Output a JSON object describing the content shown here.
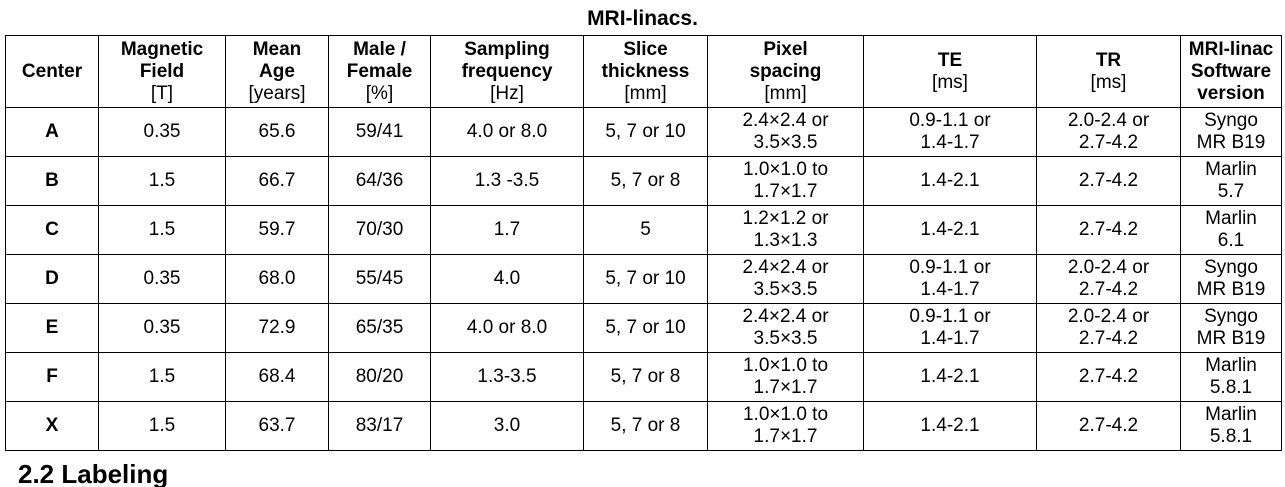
{
  "caption": "MRI-linacs.",
  "headers": [
    {
      "lines": [
        "Center"
      ],
      "unit": ""
    },
    {
      "lines": [
        "Magnetic",
        "Field"
      ],
      "unit": "[T]"
    },
    {
      "lines": [
        "Mean",
        "Age"
      ],
      "unit": "[years]"
    },
    {
      "lines": [
        "Male /",
        "Female"
      ],
      "unit": "[%]"
    },
    {
      "lines": [
        "Sampling",
        "frequency"
      ],
      "unit": "[Hz]"
    },
    {
      "lines": [
        "Slice",
        "thickness"
      ],
      "unit": "[mm]"
    },
    {
      "lines": [
        "Pixel",
        "spacing"
      ],
      "unit": "[mm]"
    },
    {
      "lines": [
        "TE"
      ],
      "unit": "[ms]"
    },
    {
      "lines": [
        "TR"
      ],
      "unit": "[ms]"
    },
    {
      "lines": [
        "MRI-linac",
        "Software",
        "version"
      ],
      "unit": ""
    }
  ],
  "rows": [
    {
      "center": "A",
      "field": "0.35",
      "age": "65.6",
      "mf": "59/41",
      "sampling": "4.0 or 8.0",
      "slice": "5, 7 or 10",
      "pixel": [
        "2.4×2.4 or",
        "3.5×3.5"
      ],
      "te": [
        "0.9-1.1 or",
        "1.4-1.7"
      ],
      "tr": [
        "2.0-2.4 or",
        "2.7-4.2"
      ],
      "software": [
        "Syngo",
        "MR B19"
      ]
    },
    {
      "center": "B",
      "field": "1.5",
      "age": "66.7",
      "mf": "64/36",
      "sampling": "1.3 -3.5",
      "slice": "5, 7 or 8",
      "pixel": [
        "1.0×1.0 to",
        "1.7×1.7"
      ],
      "te": [
        "1.4-2.1"
      ],
      "tr": [
        "2.7-4.2"
      ],
      "software": [
        "Marlin",
        "5.7"
      ]
    },
    {
      "center": "C",
      "field": "1.5",
      "age": "59.7",
      "mf": "70/30",
      "sampling": "1.7",
      "slice": "5",
      "pixel": [
        "1.2×1.2 or",
        "1.3×1.3"
      ],
      "te": [
        "1.4-2.1"
      ],
      "tr": [
        "2.7-4.2"
      ],
      "software": [
        "Marlin",
        "6.1"
      ]
    },
    {
      "center": "D",
      "field": "0.35",
      "age": "68.0",
      "mf": "55/45",
      "sampling": "4.0",
      "slice": "5, 7 or 10",
      "pixel": [
        "2.4×2.4 or",
        "3.5×3.5"
      ],
      "te": [
        "0.9-1.1 or",
        "1.4-1.7"
      ],
      "tr": [
        "2.0-2.4 or",
        "2.7-4.2"
      ],
      "software": [
        "Syngo",
        "MR B19"
      ]
    },
    {
      "center": "E",
      "field": "0.35",
      "age": "72.9",
      "mf": "65/35",
      "sampling": "4.0 or 8.0",
      "slice": "5, 7 or 10",
      "pixel": [
        "2.4×2.4 or",
        "3.5×3.5"
      ],
      "te": [
        "0.9-1.1 or",
        "1.4-1.7"
      ],
      "tr": [
        "2.0-2.4 or",
        "2.7-4.2"
      ],
      "software": [
        "Syngo",
        "MR B19"
      ]
    },
    {
      "center": "F",
      "field": "1.5",
      "age": "68.4",
      "mf": "80/20",
      "sampling": "1.3-3.5",
      "slice": "5, 7 or 8",
      "pixel": [
        "1.0×1.0 to",
        "1.7×1.7"
      ],
      "te": [
        "1.4-2.1"
      ],
      "tr": [
        "2.7-4.2"
      ],
      "software": [
        "Marlin",
        "5.8.1"
      ]
    },
    {
      "center": "X",
      "field": "1.5",
      "age": "63.7",
      "mf": "83/17",
      "sampling": "3.0",
      "slice": "5, 7 or 8",
      "pixel": [
        "1.0×1.0 to",
        "1.7×1.7"
      ],
      "te": [
        "1.4-2.1"
      ],
      "tr": [
        "2.7-4.2"
      ],
      "software": [
        "Marlin",
        "5.8.1"
      ]
    }
  ],
  "section_heading": "2.2 Labeling"
}
